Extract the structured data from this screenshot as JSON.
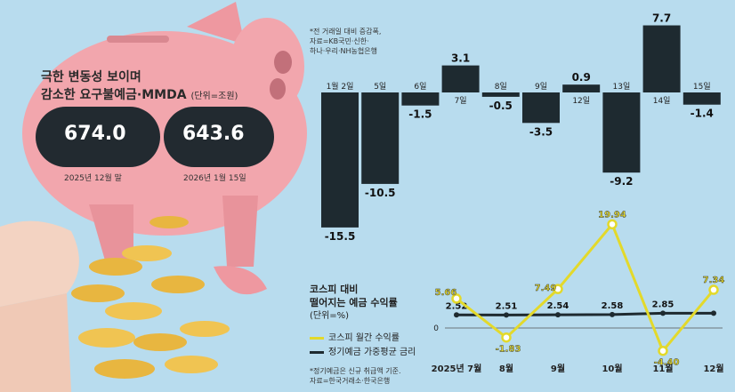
{
  "header": {
    "title_line1": "극한 변동성 보이며",
    "title_line2": "감소한 요구불예금·MMDA",
    "unit": "(단위=조원)"
  },
  "balances": [
    {
      "value": "674.0",
      "label": "2025년 12월 말"
    },
    {
      "value": "643.6",
      "label": "2026년 1월 15일"
    }
  ],
  "daily_note": [
    "*전 거래일 대비 증감폭,",
    "자료=KB국민·신한·",
    "하나·우리·NH농협은행"
  ],
  "line_chart_title": [
    "코스피 대비",
    "떨어지는 예금 수익률",
    "(단위=%)"
  ],
  "legend": {
    "kospi": "코스피 월간 수익률",
    "deposit": "정기예금 가중평균 금리"
  },
  "bottom_note": [
    "*정기예금은 신규 취급액 기준.",
    "자료=한국거래소·한국은행"
  ],
  "colors": {
    "background": "#b8dcee",
    "bar": "#1e2a30",
    "kospi": "#e3d92b",
    "deposit": "#1e2a30",
    "pig": "#f2a6ad",
    "coin": "#e8b640"
  },
  "chart_data": [
    {
      "type": "bar",
      "categories": [
        "1월 2일",
        "5일",
        "6일",
        "7일",
        "8일",
        "9일",
        "12일",
        "13일",
        "14일",
        "15일"
      ],
      "values": [
        -15.5,
        -10.5,
        -1.5,
        3.1,
        -0.5,
        -3.5,
        0.9,
        -9.2,
        7.7,
        -1.4
      ],
      "value_labels": [
        "-15.5",
        "-10.5",
        "-1.5",
        "3.1",
        "-0.5",
        "-3.5",
        "0.9",
        "-9.2",
        "7.7",
        "-1.4"
      ]
    },
    {
      "type": "line",
      "categories": [
        "2025년 7월",
        "8월",
        "9월",
        "10월",
        "11월",
        "12월"
      ],
      "series": [
        {
          "name": "코스피 월간 수익률",
          "values": [
            5.66,
            -1.83,
            7.49,
            19.94,
            -4.4,
            7.34
          ],
          "labels": [
            "5.66",
            "-1.83",
            "7.49",
            "19.94",
            "-4.40",
            "7.34"
          ]
        },
        {
          "name": "정기예금 가중평균 금리",
          "values": [
            2.52,
            2.51,
            2.54,
            2.58,
            2.85,
            2.85
          ],
          "labels": [
            "2.52",
            "2.51",
            "2.54",
            "2.58",
            "2.85",
            ""
          ]
        }
      ],
      "zero_label": "0"
    }
  ]
}
